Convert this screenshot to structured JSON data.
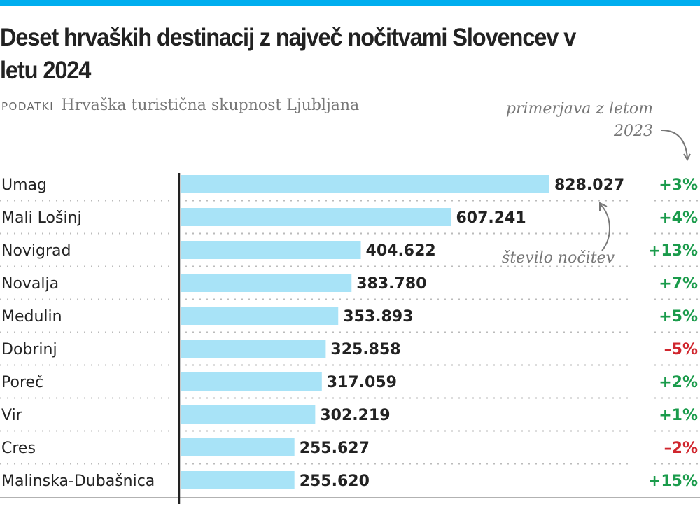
{
  "title": "Deset hrvaških destinacij z največ nočitvami Slovencev v letu 2024",
  "source_label": "PODATKI",
  "source": "Hrvaška turistična skupnost Ljubljana",
  "annotations": {
    "change": "primerjava z letom 2023",
    "value": "število nočitev"
  },
  "colors": {
    "bar": "#a8e3f7",
    "accent": "#00aeef",
    "positive": "#1a9b4b",
    "negative": "#d0262e"
  },
  "chart_data": {
    "type": "bar",
    "orientation": "horizontal",
    "categories": [
      "Umag",
      "Mali Lošinj",
      "Novigrad",
      "Novalja",
      "Medulin",
      "Dobrinj",
      "Poreč",
      "Vir",
      "Cres",
      "Malinska-Dubašnica"
    ],
    "values": [
      828027,
      607241,
      404622,
      383780,
      353893,
      325858,
      317059,
      302219,
      255627,
      255620
    ],
    "value_labels": [
      "828.027",
      "607.241",
      "404.622",
      "383.780",
      "353.893",
      "325.858",
      "317.059",
      "302.219",
      "255.627",
      "255.620"
    ],
    "change_labels": [
      "+3%",
      "+4%",
      "+13%",
      "+7%",
      "+5%",
      "–5%",
      "+2%",
      "+1%",
      "–2%",
      "+15%"
    ],
    "change_values": [
      3,
      4,
      13,
      7,
      5,
      -5,
      2,
      1,
      -2,
      15
    ],
    "grid": false,
    "legend": "none"
  }
}
